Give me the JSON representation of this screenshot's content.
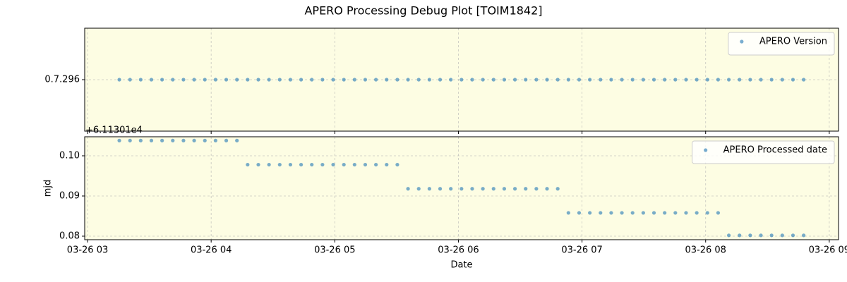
{
  "title": "APERO Processing Debug Plot [TOIM1842]",
  "chart_data": [
    {
      "type": "scatter",
      "facecolor": "#fdfde3",
      "grid": true,
      "legend": "upper right",
      "xlim": [
        2.977,
        9.075
      ],
      "xticks": [
        3,
        4,
        5,
        6,
        7,
        8,
        9
      ],
      "ylim": [
        -1,
        1
      ],
      "yticks": [
        {
          "value": 0,
          "label": "0.7.296"
        }
      ],
      "x": [
        3.257,
        3.3435,
        3.43,
        3.5165,
        3.603,
        3.6895,
        3.776,
        3.8625,
        3.949,
        4.0355,
        4.122,
        4.2085,
        4.295,
        4.3815,
        4.468,
        4.5545,
        4.641,
        4.7275,
        4.814,
        4.9005,
        4.987,
        5.0735,
        5.16,
        5.2465,
        5.333,
        5.4195,
        5.506,
        5.5925,
        5.679,
        5.7655,
        5.852,
        5.9385,
        6.025,
        6.1115,
        6.198,
        6.2845,
        6.371,
        6.4575,
        6.544,
        6.6305,
        6.717,
        6.8035,
        6.89,
        6.9765,
        7.063,
        7.1495,
        7.236,
        7.3225,
        7.409,
        7.4955,
        7.582,
        7.6685,
        7.755,
        7.8415,
        7.928,
        8.0145,
        8.101,
        8.1875,
        8.274,
        8.3605,
        8.447,
        8.5335,
        8.62,
        8.7065,
        8.793
      ],
      "series": [
        {
          "name": "APERO Version",
          "color": "#1f77b4",
          "values": [
            0,
            0,
            0,
            0,
            0,
            0,
            0,
            0,
            0,
            0,
            0,
            0,
            0,
            0,
            0,
            0,
            0,
            0,
            0,
            0,
            0,
            0,
            0,
            0,
            0,
            0,
            0,
            0,
            0,
            0,
            0,
            0,
            0,
            0,
            0,
            0,
            0,
            0,
            0,
            0,
            0,
            0,
            0,
            0,
            0,
            0,
            0,
            0,
            0,
            0,
            0,
            0,
            0,
            0,
            0,
            0,
            0,
            0,
            0,
            0,
            0,
            0,
            0,
            0,
            0
          ]
        }
      ]
    },
    {
      "type": "scatter",
      "facecolor": "#fdfde3",
      "grid": true,
      "legend": "upper right",
      "xlabel": "Date",
      "ylabel": "mjd",
      "offset_label": "+6.11301e4",
      "xlim": [
        2.977,
        9.075
      ],
      "xticks": [
        {
          "value": 3,
          "label": "03-26 03"
        },
        {
          "value": 4,
          "label": "03-26 04"
        },
        {
          "value": 5,
          "label": "03-26 05"
        },
        {
          "value": 6,
          "label": "03-26 06"
        },
        {
          "value": 7,
          "label": "03-26 07"
        },
        {
          "value": 8,
          "label": "03-26 08"
        },
        {
          "value": 9,
          "label": "03-26 09"
        }
      ],
      "ylim": [
        0.07912,
        0.10474
      ],
      "yticks": [
        {
          "value": 0.08,
          "label": "0.08"
        },
        {
          "value": 0.09,
          "label": "0.09"
        },
        {
          "value": 0.1,
          "label": "0.10"
        }
      ],
      "x": [
        3.257,
        3.3435,
        3.43,
        3.5165,
        3.603,
        3.6895,
        3.776,
        3.8625,
        3.949,
        4.0355,
        4.122,
        4.2085,
        4.295,
        4.3815,
        4.468,
        4.5545,
        4.641,
        4.7275,
        4.814,
        4.9005,
        4.987,
        5.0735,
        5.16,
        5.2465,
        5.333,
        5.4195,
        5.506,
        5.5925,
        5.679,
        5.7655,
        5.852,
        5.9385,
        6.025,
        6.1115,
        6.198,
        6.2845,
        6.371,
        6.4575,
        6.544,
        6.6305,
        6.717,
        6.8035,
        6.89,
        6.9765,
        7.063,
        7.1495,
        7.236,
        7.3225,
        7.409,
        7.4955,
        7.582,
        7.6685,
        7.755,
        7.8415,
        7.928,
        8.0145,
        8.101,
        8.1875,
        8.274,
        8.3605,
        8.447,
        8.5335,
        8.62,
        8.7065,
        8.793
      ],
      "series": [
        {
          "name": "APERO Processed date",
          "color": "#1f77b4",
          "values": [
            0.1038,
            0.1038,
            0.1038,
            0.1038,
            0.1038,
            0.1038,
            0.1038,
            0.1038,
            0.1038,
            0.1038,
            0.1038,
            0.1038,
            0.0978,
            0.0978,
            0.0978,
            0.0978,
            0.0978,
            0.0978,
            0.0978,
            0.0978,
            0.0978,
            0.0978,
            0.0978,
            0.0978,
            0.0978,
            0.0978,
            0.0978,
            0.0918,
            0.0918,
            0.0918,
            0.0918,
            0.0918,
            0.0918,
            0.0918,
            0.0918,
            0.0918,
            0.0918,
            0.0918,
            0.0918,
            0.0918,
            0.0918,
            0.0918,
            0.0858,
            0.0858,
            0.0858,
            0.0858,
            0.0858,
            0.0858,
            0.0858,
            0.0858,
            0.0858,
            0.0858,
            0.0858,
            0.0858,
            0.0858,
            0.0858,
            0.0858,
            0.0802,
            0.0802,
            0.0802,
            0.0802,
            0.0802,
            0.0802,
            0.0802,
            0.0802
          ]
        }
      ]
    }
  ]
}
